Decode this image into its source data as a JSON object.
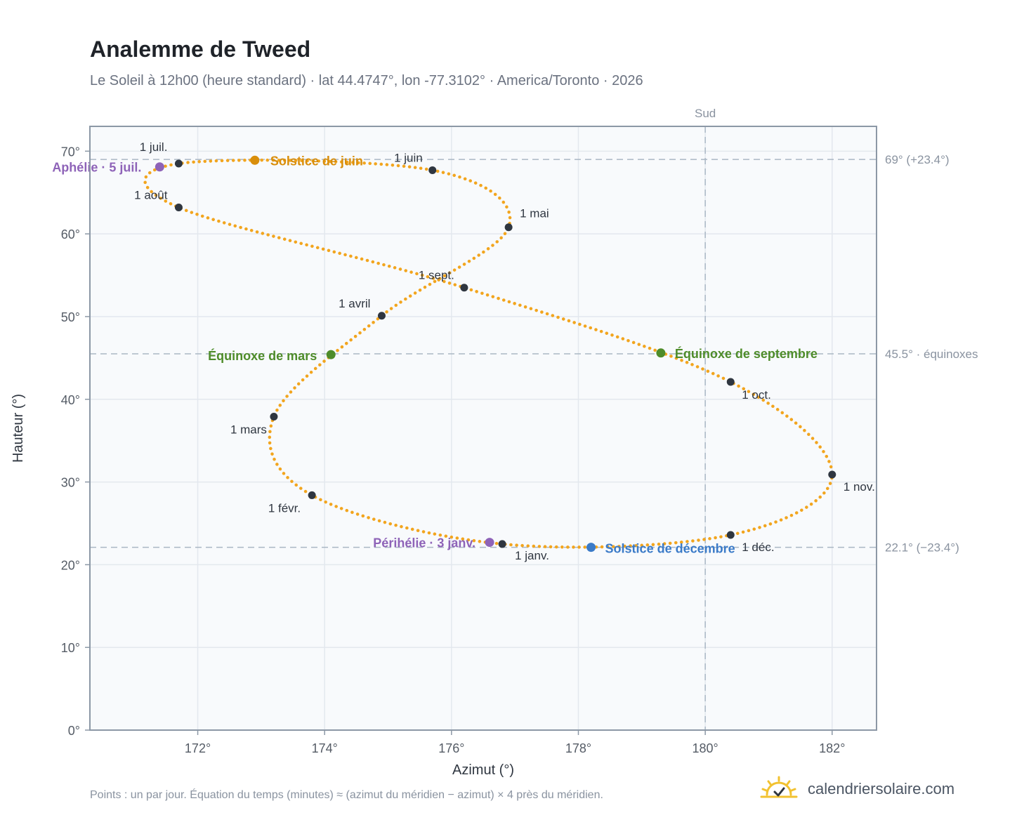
{
  "header": {
    "title": "Analemme de Tweed",
    "subtitle": "Le Soleil à 12h00 (heure standard) · lat 44.4747°, lon -77.3102° · America/Toronto · 2026"
  },
  "footer": {
    "note": "Points : un par jour. Équation du temps (minutes) ≈ (azimut du méridien − azimut) × 4 près du méridien.",
    "brand": "calendriersolaire.com",
    "brand_icon": "sun-icon"
  },
  "colors": {
    "curve": "#F2A51E",
    "month_dot": "#2F3640",
    "solstice_june": "#D98E0B",
    "equinox": "#4E8C2A",
    "solstice_december": "#3B7BC8",
    "apsis": "#8E63B8",
    "grid": "#E3E8EE",
    "reference": "#AAB7C4",
    "plot_bg": "#F8FAFC"
  },
  "chart_data": {
    "type": "scatter",
    "title": "Analemme de Tweed",
    "xlabel": "Azimut (°)",
    "ylabel": "Hauteur (°)",
    "xlim": [
      170.3,
      182.7
    ],
    "ylim": [
      0,
      73
    ],
    "xticks": [
      172,
      174,
      176,
      178,
      180,
      182
    ],
    "xtick_labels": [
      "172°",
      "174°",
      "176°",
      "178°",
      "180°",
      "182°"
    ],
    "yticks": [
      0,
      10,
      20,
      30,
      40,
      50,
      60,
      70
    ],
    "ytick_labels": [
      "0°",
      "10°",
      "20°",
      "30°",
      "40°",
      "50°",
      "60°",
      "70°"
    ],
    "grid": true,
    "reference_lines": {
      "horizontal": [
        {
          "y": 69.0,
          "label": "69° (+23.4°)"
        },
        {
          "y": 45.5,
          "label": "45.5° · équinoxes"
        },
        {
          "y": 22.1,
          "label": "22.1° (−23.4°)"
        }
      ],
      "vertical": [
        {
          "x": 180,
          "label": "Sud"
        }
      ]
    },
    "month_points": [
      {
        "label": "1 janv.",
        "x": 176.8,
        "y": 22.5
      },
      {
        "label": "1 févr.",
        "x": 173.8,
        "y": 28.4
      },
      {
        "label": "1 mars",
        "x": 173.2,
        "y": 37.9
      },
      {
        "label": "1 avril",
        "x": 174.9,
        "y": 50.1
      },
      {
        "label": "1 mai",
        "x": 176.9,
        "y": 60.8
      },
      {
        "label": "1 juin",
        "x": 175.7,
        "y": 67.7
      },
      {
        "label": "1 juil.",
        "x": 171.7,
        "y": 68.5
      },
      {
        "label": "1 août",
        "x": 171.7,
        "y": 63.2
      },
      {
        "label": "1 sept.",
        "x": 176.2,
        "y": 53.5
      },
      {
        "label": "1 oct.",
        "x": 180.4,
        "y": 42.1
      },
      {
        "label": "1 nov.",
        "x": 182.0,
        "y": 30.9
      },
      {
        "label": "1 déc.",
        "x": 180.4,
        "y": 23.6
      }
    ],
    "events": [
      {
        "label": "Solstice de juin",
        "x": 172.9,
        "y": 68.9,
        "kind": "solstice_june"
      },
      {
        "label": "Aphélie · 5 juil.",
        "x": 171.4,
        "y": 68.1,
        "kind": "apsis"
      },
      {
        "label": "Équinoxe de mars",
        "x": 174.1,
        "y": 45.4,
        "kind": "equinox"
      },
      {
        "label": "Équinoxe de septembre",
        "x": 179.3,
        "y": 45.6,
        "kind": "equinox"
      },
      {
        "label": "Périhélie · 3 janv.",
        "x": 176.6,
        "y": 22.7,
        "kind": "apsis"
      },
      {
        "label": "Solstice de décembre",
        "x": 178.2,
        "y": 22.1,
        "kind": "solstice_december"
      }
    ]
  }
}
